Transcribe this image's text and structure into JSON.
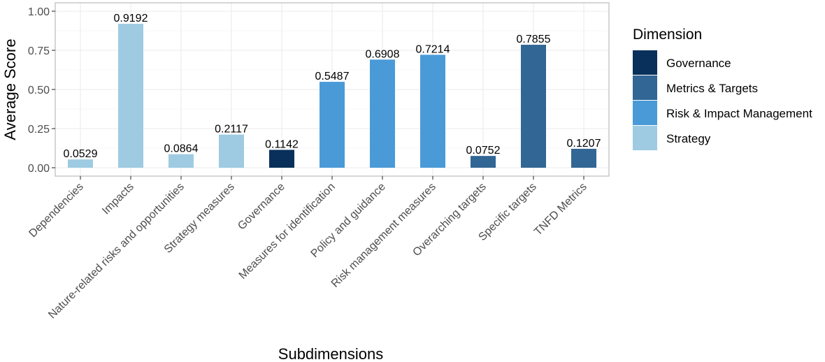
{
  "chart_data": {
    "type": "bar",
    "title": "",
    "xlabel": "Subdimensions",
    "ylabel": "Average Score",
    "ylim": [
      0,
      1.0
    ],
    "yticks": [
      "0.00",
      "0.25",
      "0.50",
      "0.75",
      "1.00"
    ],
    "grid": true,
    "legend_placement": "right",
    "categories": [
      "Dependencies",
      "Impacts",
      "Nature-related risks and opportunities",
      "Strategy measures",
      "Governance",
      "Measures for identification",
      "Policy and guidance",
      "Risk management measures",
      "Overarching targets",
      "Specific targets",
      "TNFD Metrics"
    ],
    "values": [
      0.0529,
      0.9192,
      0.0864,
      0.2117,
      0.1142,
      0.5487,
      0.6908,
      0.7214,
      0.0752,
      0.7855,
      0.1207
    ],
    "value_labels": [
      "0.0529",
      "0.9192",
      "0.0864",
      "0.2117",
      "0.1142",
      "0.5487",
      "0.6908",
      "0.7214",
      "0.0752",
      "0.7855",
      "0.1207"
    ],
    "dimension": [
      "Strategy",
      "Strategy",
      "Strategy",
      "Strategy",
      "Governance",
      "Risk & Impact Management",
      "Risk & Impact Management",
      "Risk & Impact Management",
      "Metrics & Targets",
      "Metrics & Targets",
      "Metrics & Targets"
    ],
    "legend": {
      "title": "Dimension",
      "entries": [
        {
          "label": "Governance",
          "color": "#08305b"
        },
        {
          "label": "Metrics & Targets",
          "color": "#316695"
        },
        {
          "label": "Risk & Impact Management",
          "color": "#4a9ad8"
        },
        {
          "label": "Strategy",
          "color": "#9ecbe2"
        }
      ]
    }
  }
}
